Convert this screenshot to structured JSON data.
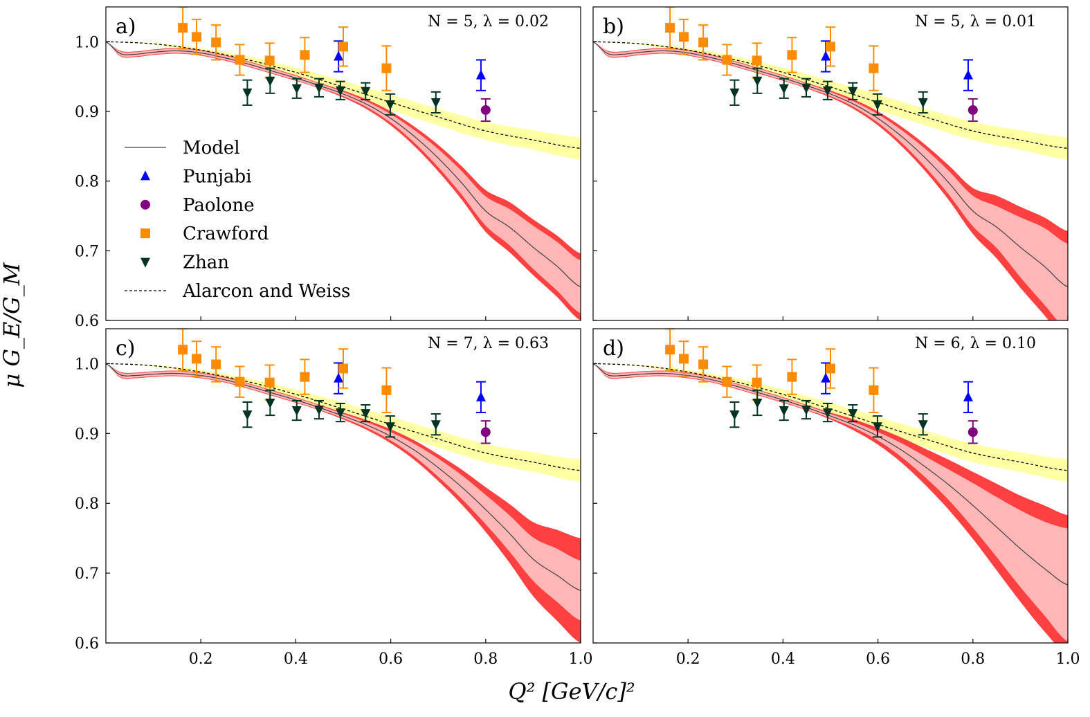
{
  "figure": {
    "ylabel": "μ G_E/G_M",
    "xlabel": "Q² [GeV/c]²"
  },
  "chart_data": {
    "type": "scatter",
    "xlim": [
      0.0,
      1.0
    ],
    "ylim": [
      0.6,
      1.05
    ],
    "xticks": [
      "0.2",
      "0.4",
      "0.6",
      "0.8",
      "1.0"
    ],
    "yticks": [
      "0.6",
      "0.7",
      "0.8",
      "0.9",
      "1.0"
    ],
    "legend": {
      "placement": "left",
      "entries": [
        "Model",
        "Punjabi",
        "Paolone",
        "Crawford",
        "Zhan",
        "Alarcon and Weiss"
      ]
    },
    "colors": {
      "model": "#404040",
      "inner_band": "#ffb6b6",
      "outer_band": "#ff4040",
      "aw_band": "#ffff99",
      "aw_line": "#000000",
      "punjabi": "#0000ff",
      "paolone": "#800080",
      "crawford": "#ff8c00",
      "zhan": "#003322"
    },
    "series": [
      {
        "name": "Punjabi",
        "marker": "triangle-up",
        "x": [
          0.49,
          0.79
        ],
        "y": [
          0.979,
          0.952
        ],
        "err": [
          0.022,
          0.022
        ]
      },
      {
        "name": "Paolone",
        "marker": "circle",
        "x": [
          0.8
        ],
        "y": [
          0.902
        ],
        "err": [
          0.016
        ]
      },
      {
        "name": "Crawford",
        "marker": "square",
        "x": [
          0.162,
          0.191,
          0.232,
          0.282,
          0.345,
          0.419,
          0.5,
          0.591
        ],
        "y": [
          1.02,
          1.007,
          0.999,
          0.974,
          0.973,
          0.981,
          0.993,
          0.962
        ],
        "err": [
          0.03,
          0.025,
          0.025,
          0.022,
          0.025,
          0.025,
          0.028,
          0.032
        ]
      },
      {
        "name": "Zhan",
        "marker": "triangle-down",
        "x": [
          0.298,
          0.346,
          0.402,
          0.449,
          0.494,
          0.547,
          0.599,
          0.695
        ],
        "y": [
          0.927,
          0.944,
          0.933,
          0.934,
          0.93,
          0.929,
          0.91,
          0.913
        ],
        "err": [
          0.018,
          0.018,
          0.014,
          0.013,
          0.013,
          0.012,
          0.015,
          0.015
        ]
      }
    ],
    "alarcon_weiss": {
      "x": [
        0,
        0.1,
        0.2,
        0.3,
        0.4,
        0.5,
        0.6,
        0.7,
        0.8,
        0.9,
        1.0
      ],
      "y": [
        1.0,
        0.997,
        0.988,
        0.974,
        0.956,
        0.935,
        0.913,
        0.892,
        0.872,
        0.859,
        0.847
      ],
      "band_halfwidth": [
        0,
        0.001,
        0.003,
        0.005,
        0.007,
        0.009,
        0.011,
        0.012,
        0.013,
        0.014,
        0.016
      ]
    },
    "panels": [
      {
        "label": "a)",
        "annotation": "N = 5, λ = 0.02",
        "N": "5",
        "lambda": "0.02",
        "model": {
          "x": [
            0,
            0.03,
            0.06,
            0.1,
            0.15,
            0.2,
            0.25,
            0.3,
            0.35,
            0.4,
            0.45,
            0.5,
            0.55,
            0.6,
            0.65,
            0.7,
            0.75,
            0.8,
            0.85,
            0.9,
            0.95,
            1.0
          ],
          "y": [
            1.0,
            0.983,
            0.982,
            0.985,
            0.987,
            0.984,
            0.977,
            0.968,
            0.958,
            0.948,
            0.937,
            0.925,
            0.91,
            0.89,
            0.864,
            0.833,
            0.797,
            0.757,
            0.734,
            0.705,
            0.678,
            0.648
          ],
          "inner_halfwidth": [
            0,
            0.003,
            0.003,
            0.003,
            0.003,
            0.003,
            0.003,
            0.003,
            0.003,
            0.003,
            0.003,
            0.003,
            0.004,
            0.006,
            0.009,
            0.013,
            0.017,
            0.021,
            0.026,
            0.031,
            0.035,
            0.038
          ],
          "outer_halfwidth": [
            0,
            0.004,
            0.004,
            0.004,
            0.004,
            0.004,
            0.004,
            0.004,
            0.004,
            0.004,
            0.004,
            0.005,
            0.007,
            0.01,
            0.014,
            0.019,
            0.024,
            0.03,
            0.036,
            0.04,
            0.044,
            0.048
          ]
        }
      },
      {
        "label": "b)",
        "annotation": "N = 5, λ = 0.01",
        "N": "5",
        "lambda": "0.01",
        "model": {
          "x": [
            0,
            0.03,
            0.06,
            0.1,
            0.15,
            0.2,
            0.25,
            0.3,
            0.35,
            0.4,
            0.45,
            0.5,
            0.55,
            0.6,
            0.65,
            0.7,
            0.75,
            0.8,
            0.85,
            0.9,
            0.95,
            1.0
          ],
          "y": [
            1.0,
            0.983,
            0.982,
            0.985,
            0.987,
            0.984,
            0.977,
            0.968,
            0.958,
            0.948,
            0.937,
            0.925,
            0.91,
            0.89,
            0.864,
            0.833,
            0.797,
            0.757,
            0.734,
            0.705,
            0.678,
            0.648
          ],
          "inner_halfwidth": [
            0,
            0.003,
            0.003,
            0.003,
            0.003,
            0.003,
            0.003,
            0.003,
            0.003,
            0.003,
            0.003,
            0.003,
            0.004,
            0.006,
            0.009,
            0.013,
            0.017,
            0.022,
            0.03,
            0.043,
            0.055,
            0.062
          ],
          "outer_halfwidth": [
            0,
            0.004,
            0.004,
            0.004,
            0.004,
            0.004,
            0.004,
            0.004,
            0.004,
            0.004,
            0.004,
            0.005,
            0.007,
            0.01,
            0.014,
            0.019,
            0.025,
            0.033,
            0.045,
            0.058,
            0.07,
            0.08
          ]
        }
      },
      {
        "label": "c)",
        "annotation": "N = 7, λ = 0.63",
        "N": "7",
        "lambda": "0.63",
        "model": {
          "x": [
            0,
            0.03,
            0.06,
            0.1,
            0.15,
            0.2,
            0.25,
            0.3,
            0.35,
            0.4,
            0.45,
            0.5,
            0.55,
            0.6,
            0.65,
            0.7,
            0.75,
            0.8,
            0.85,
            0.9,
            0.95,
            1.0
          ],
          "y": [
            1.0,
            0.984,
            0.983,
            0.985,
            0.986,
            0.983,
            0.977,
            0.968,
            0.958,
            0.948,
            0.937,
            0.925,
            0.912,
            0.896,
            0.876,
            0.851,
            0.823,
            0.791,
            0.757,
            0.72,
            0.697,
            0.675
          ],
          "inner_halfwidth": [
            0,
            0.003,
            0.003,
            0.003,
            0.003,
            0.003,
            0.003,
            0.003,
            0.003,
            0.003,
            0.003,
            0.003,
            0.004,
            0.006,
            0.009,
            0.013,
            0.017,
            0.021,
            0.026,
            0.031,
            0.038,
            0.043
          ],
          "outer_halfwidth": [
            0,
            0.004,
            0.004,
            0.004,
            0.004,
            0.004,
            0.004,
            0.004,
            0.004,
            0.004,
            0.004,
            0.005,
            0.007,
            0.01,
            0.014,
            0.019,
            0.025,
            0.032,
            0.042,
            0.053,
            0.065,
            0.075
          ]
        }
      },
      {
        "label": "d)",
        "annotation": "N = 6, λ = 0.10",
        "N": "6",
        "lambda": "0.10",
        "model": {
          "x": [
            0,
            0.03,
            0.06,
            0.1,
            0.15,
            0.2,
            0.25,
            0.3,
            0.35,
            0.4,
            0.45,
            0.5,
            0.55,
            0.6,
            0.65,
            0.7,
            0.75,
            0.8,
            0.85,
            0.9,
            0.95,
            1.0
          ],
          "y": [
            1.0,
            0.984,
            0.983,
            0.985,
            0.986,
            0.983,
            0.977,
            0.968,
            0.958,
            0.948,
            0.937,
            0.925,
            0.912,
            0.896,
            0.876,
            0.852,
            0.826,
            0.797,
            0.766,
            0.735,
            0.707,
            0.683
          ],
          "inner_halfwidth": [
            0,
            0.003,
            0.003,
            0.003,
            0.003,
            0.003,
            0.003,
            0.003,
            0.003,
            0.003,
            0.003,
            0.003,
            0.004,
            0.006,
            0.01,
            0.015,
            0.022,
            0.032,
            0.043,
            0.055,
            0.067,
            0.081
          ],
          "outer_halfwidth": [
            0,
            0.004,
            0.004,
            0.004,
            0.004,
            0.004,
            0.004,
            0.004,
            0.004,
            0.004,
            0.004,
            0.005,
            0.008,
            0.012,
            0.018,
            0.026,
            0.036,
            0.048,
            0.062,
            0.076,
            0.09,
            0.1
          ]
        }
      }
    ]
  }
}
